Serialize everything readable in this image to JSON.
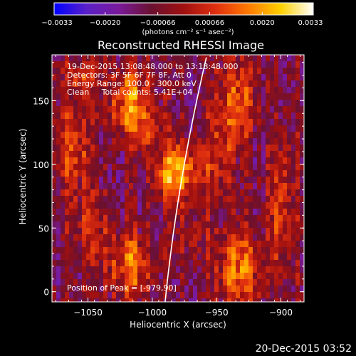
{
  "chart_data": {
    "type": "heatmap",
    "title": "Reconstructed RHESSI Image",
    "xlabel": "Heliocentric X (arcsec)",
    "ylabel": "Heliocentric Y (arcsec)",
    "xlim": [
      -1078,
      -882
    ],
    "ylim": [
      -8,
      186
    ],
    "x_ticks": [
      {
        "value": -1050,
        "label": "−1050"
      },
      {
        "value": -1000,
        "label": "−1000"
      },
      {
        "value": -950,
        "label": "−950"
      },
      {
        "value": -900,
        "label": "−900"
      }
    ],
    "y_ticks": [
      {
        "value": 0,
        "label": "0"
      },
      {
        "value": 50,
        "label": "50"
      },
      {
        "value": 100,
        "label": "100"
      },
      {
        "value": 150,
        "label": "150"
      }
    ],
    "annotations": [
      "19-Dec-2015 13:08:48.000 to 13:18:48.000",
      "Detectors: 3F 5F 6F 7F 8F, Att 0",
      "Energy Range: 100.0 - 300.0 keV",
      "Clean     Total counts: 5.41E+04"
    ],
    "peak_label": "Position of Peak = [-979,90]",
    "peak": [
      -979,
      90
    ],
    "limb_color": "#ffffff",
    "colorbar": {
      "min": -0.0033,
      "max": 0.0033,
      "tick_labels": [
        "−0.0033",
        "−0.0020",
        "−0.00066",
        "0.00066",
        "0.0020",
        "0.0033"
      ],
      "tick_values": [
        -0.0033,
        -0.002,
        -0.00066,
        0.00066,
        0.002,
        0.0033
      ],
      "units": "(photons cm⁻² s⁻¹ asec⁻²)",
      "colors": [
        "#0000ff",
        "#5a20c8",
        "#7a1a9a",
        "#6a1030",
        "#a01010",
        "#e03010",
        "#ff7a00",
        "#ffd000",
        "#ffffff"
      ]
    },
    "sources": [
      {
        "x": -980,
        "y": 94,
        "flux": 0.0033,
        "sx": 12,
        "sy": 16
      },
      {
        "x": -1018,
        "y": 152,
        "flux": 0.0024,
        "sx": 12,
        "sy": 18
      },
      {
        "x": -1008,
        "y": 128,
        "flux": 0.0016,
        "sx": 10,
        "sy": 10
      },
      {
        "x": -932,
        "y": 18,
        "flux": 0.0024,
        "sx": 12,
        "sy": 22
      },
      {
        "x": -1018,
        "y": 20,
        "flux": 0.0022,
        "sx": 12,
        "sy": 20
      },
      {
        "x": -1062,
        "y": 112,
        "flux": 0.0016,
        "sx": 10,
        "sy": 24
      },
      {
        "x": -1048,
        "y": 48,
        "flux": 0.0013,
        "sx": 10,
        "sy": 18
      },
      {
        "x": -935,
        "y": 150,
        "flux": 0.0019,
        "sx": 12,
        "sy": 26
      },
      {
        "x": -900,
        "y": 70,
        "flux": 0.0016,
        "sx": 8,
        "sy": 40
      },
      {
        "x": -950,
        "y": 100,
        "flux": 0.0012,
        "sx": 8,
        "sy": 22
      },
      {
        "x": -970,
        "y": 40,
        "flux": 0.001,
        "sx": 8,
        "sy": 14
      },
      {
        "x": -1055,
        "y": 170,
        "flux": 0.0012,
        "sx": 10,
        "sy": 10
      }
    ]
  },
  "footer": {
    "date": "20-Dec-2015 03:52"
  }
}
